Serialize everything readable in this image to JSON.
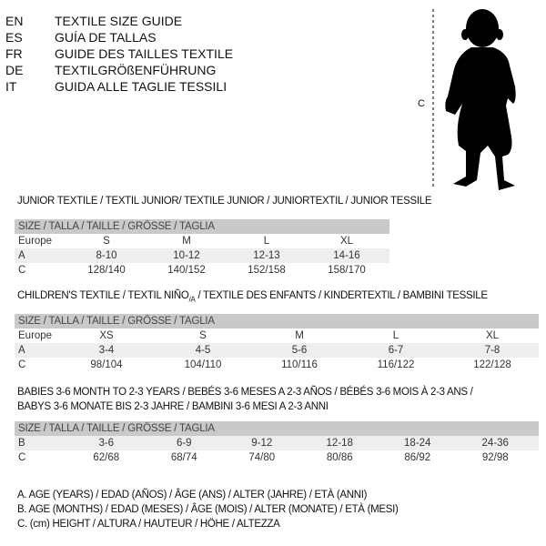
{
  "languages": [
    {
      "code": "EN",
      "text": "TEXTILE SIZE GUIDE"
    },
    {
      "code": "ES",
      "text": "GUÍA DE TALLAS"
    },
    {
      "code": "FR",
      "text": "GUIDE DES TAILLES TEXTILE"
    },
    {
      "code": "DE",
      "text": "TEXTILGRÖßENFÜHRUNG"
    },
    {
      "code": "IT",
      "text": "GUIDA ALLE TAGLIE TESSILI"
    }
  ],
  "figure": {
    "measure_label": "C",
    "icon": "child-silhouette"
  },
  "junior": {
    "title": "JUNIOR TEXTILE / TEXTIL JUNIOR/ TEXTILE JUNIOR / JUNIORTEXTIL / JUNIOR TESSILE",
    "header": "SIZE / TALLA / TAILLE / GRÖSSE / TAGLIA",
    "rows": [
      {
        "label": "Europe",
        "values": [
          "S",
          "M",
          "L",
          "XL"
        ]
      },
      {
        "label": "A",
        "values": [
          "8-10",
          "10-12",
          "12-13",
          "14-16"
        ]
      },
      {
        "label": "C",
        "values": [
          "128/140",
          "140/152",
          "152/158",
          "158/170"
        ]
      }
    ]
  },
  "children": {
    "title": "CHILDREN'S TEXTILE / TEXTIL NIÑO/A / TEXTILE DES ENFANTS / KINDERTEXTIL / BAMBINI TESSILE",
    "header": "SIZE / TALLA / TAILLE / GRÖSSE / TAGLIA",
    "rows": [
      {
        "label": "Europe",
        "values": [
          "XS",
          "S",
          "M",
          "L",
          "XL"
        ]
      },
      {
        "label": "A",
        "values": [
          "3-4",
          "4-5",
          "5-6",
          "6-7",
          "7-8"
        ]
      },
      {
        "label": "C",
        "values": [
          "98/104",
          "104/110",
          "110/116",
          "116/122",
          "122/128"
        ]
      }
    ]
  },
  "babies": {
    "title_line1": "BABIES 3-6 MONTH TO 2-3 YEARS / BEBÉS 3-6 MESES A 2-3 AÑOS / BÉBÉS 3-6 MOIS À 2-3 ANS /",
    "title_line2": "BABYS 3-6 MONATE BIS 2-3 JAHRE / BAMBINI 3-6 MESI A 2-3 ANNI",
    "header": "SIZE / TALLA / TAILLE / GRÖSSE / TAGLIA",
    "rows": [
      {
        "label": "B",
        "values": [
          "3-6",
          "6-9",
          "9-12",
          "12-18",
          "18-24",
          "24-36"
        ]
      },
      {
        "label": "C",
        "values": [
          "62/68",
          "68/74",
          "74/80",
          "80/86",
          "86/92",
          "92/98"
        ]
      }
    ]
  },
  "legend": [
    "A. AGE (YEARS) / EDAD (AÑOS) / ÂGE (ANS) / ALTER (JAHRE) / ETÀ (ANNI)",
    "B. AGE (MONTHS) / EDAD (MESES) / ÂGE (MOIS) / ALTER (MONATE) / ETÀ (MESI)",
    "C. (cm) HEIGHT / ALTURA / HAUTEUR / HÖHE / ALTEZZA"
  ]
}
